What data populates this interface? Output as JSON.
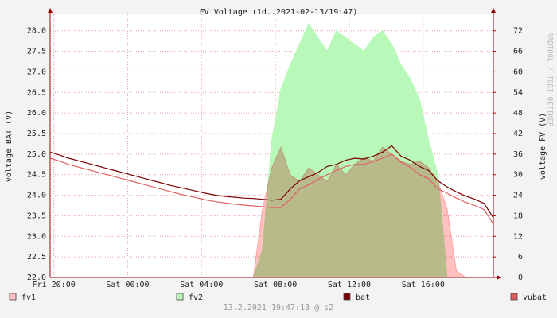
{
  "chart_data": {
    "type": "line",
    "title": "FV Voltage (1d..2021-02-13/19:47)",
    "y_label": "voltage BAT (V)",
    "y2_label": "voltage FV (V)",
    "watermark": "RRDTOOL / TOBI OETIKER",
    "footer": "13.2.2021 19:47:13 @ s2",
    "grid": true,
    "legend": "bottom",
    "x": [
      -0.2,
      0.3,
      0.8,
      1.3,
      1.8,
      2.3,
      2.8,
      3.3,
      3.8,
      4.3,
      4.8,
      5.3,
      5.8,
      6.3,
      6.8,
      7.3,
      7.8,
      8.3,
      8.8,
      9.3,
      9.8,
      10.3,
      10.8,
      11.3,
      11.8,
      12.3,
      12.8,
      13.3,
      13.8,
      14.3,
      14.8,
      15.3,
      15.8,
      16.3,
      16.8,
      17.3,
      17.8,
      18.3,
      18.8,
      19.3,
      19.8,
      20.3,
      20.8,
      21.3,
      21.8,
      22.3,
      22.8,
      23.3,
      23.8
    ],
    "xlim": [
      -0.2,
      23.8
    ],
    "xticks": [
      {
        "value": 0,
        "label": "Fri 20:00"
      },
      {
        "value": 4,
        "label": "Sat 00:00"
      },
      {
        "value": 8,
        "label": "Sat 04:00"
      },
      {
        "value": 12,
        "label": "Sat 08:00"
      },
      {
        "value": 16,
        "label": "Sat 12:00"
      },
      {
        "value": 20,
        "label": "Sat 16:00"
      }
    ],
    "ylim": [
      22,
      28.4
    ],
    "yticks": [
      {
        "value": 22,
        "label": "22.0"
      },
      22.5,
      {
        "value": 23,
        "label": "23.0"
      },
      23.5,
      {
        "value": 24,
        "label": "24.0"
      },
      24.5,
      {
        "value": 25,
        "label": "25.0"
      },
      25.5,
      {
        "value": 26,
        "label": "26.0"
      },
      26.5,
      {
        "value": 27,
        "label": "27.0"
      },
      27.5,
      {
        "value": 28,
        "label": "28.0"
      }
    ],
    "y2lim": [
      0,
      76.8
    ],
    "y2ticks": [
      0,
      6,
      12,
      18,
      24,
      30,
      36,
      42,
      48,
      54,
      60,
      66,
      72
    ],
    "series": [
      {
        "name": "fv1",
        "color": "#ffc0c0",
        "type": "area",
        "axis": "y2",
        "values": [
          0,
          0,
          0,
          0,
          0,
          0,
          0,
          0,
          0,
          0,
          0,
          0,
          0,
          0,
          0,
          0,
          0,
          0,
          0,
          0,
          0,
          0,
          0,
          20,
          32,
          38,
          30,
          28,
          32,
          30,
          28,
          33,
          30,
          33,
          35,
          34,
          38,
          36,
          34,
          33,
          34,
          32,
          28,
          20,
          2,
          0,
          0,
          0,
          0
        ]
      },
      {
        "name": "fv2",
        "color": "#b8f8b8",
        "type": "area",
        "axis": "y2",
        "values": [
          0,
          0,
          0,
          0,
          0,
          0,
          0,
          0,
          0,
          0,
          0,
          0,
          0,
          0,
          0,
          0,
          0,
          0,
          0,
          0,
          0,
          0,
          0,
          8,
          40,
          55,
          62,
          68,
          74,
          70,
          66,
          72,
          70,
          68,
          66,
          70,
          72,
          68,
          62,
          58,
          52,
          40,
          30,
          0,
          0,
          0,
          0,
          0,
          0
        ]
      },
      {
        "name": "bat",
        "color": "#7a0000",
        "type": "line",
        "values": [
          25.05,
          24.98,
          24.9,
          24.84,
          24.78,
          24.72,
          24.66,
          24.6,
          24.54,
          24.48,
          24.42,
          24.36,
          24.3,
          24.24,
          24.19,
          24.14,
          24.09,
          24.04,
          24.0,
          23.97,
          23.95,
          23.93,
          23.92,
          23.9,
          23.88,
          23.9,
          24.15,
          24.35,
          24.45,
          24.55,
          24.7,
          24.75,
          24.85,
          24.9,
          24.88,
          24.95,
          25.05,
          25.2,
          24.95,
          24.85,
          24.7,
          24.6,
          24.35,
          24.2,
          24.08,
          23.98,
          23.9,
          23.8,
          23.45
        ]
      },
      {
        "name": "vubat",
        "color": "#e06060",
        "type": "line",
        "values": [
          24.9,
          24.83,
          24.75,
          24.69,
          24.63,
          24.57,
          24.51,
          24.45,
          24.39,
          24.33,
          24.27,
          24.21,
          24.15,
          24.09,
          24.03,
          23.98,
          23.93,
          23.88,
          23.84,
          23.81,
          23.78,
          23.76,
          23.74,
          23.72,
          23.7,
          23.7,
          23.9,
          24.15,
          24.25,
          24.38,
          24.5,
          24.6,
          24.7,
          24.75,
          24.75,
          24.82,
          24.9,
          25.0,
          24.8,
          24.68,
          24.5,
          24.4,
          24.15,
          24.05,
          23.93,
          23.83,
          23.75,
          23.65,
          23.3
        ]
      }
    ]
  }
}
